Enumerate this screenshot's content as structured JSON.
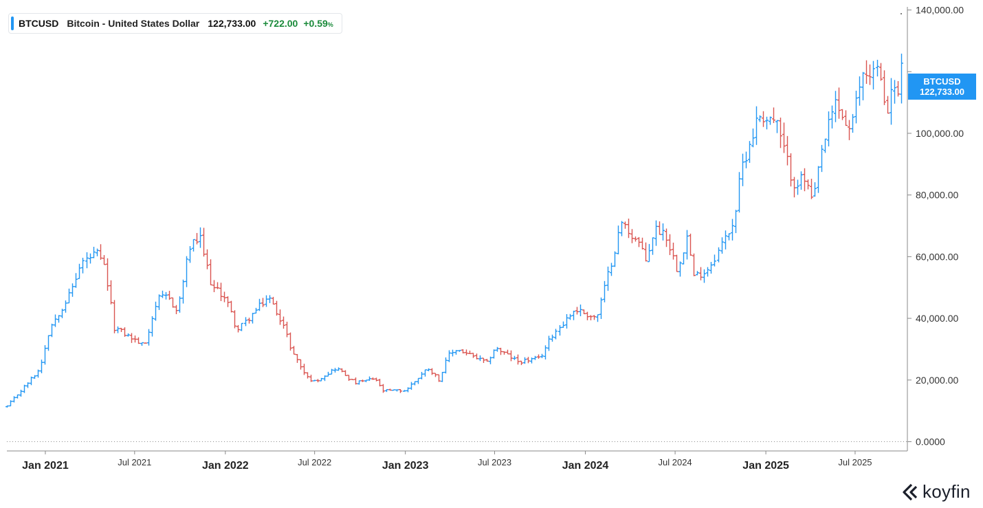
{
  "legend": {
    "symbol": "BTCUSD",
    "name": "Bitcoin - United States Dollar",
    "price": "122,733.00",
    "change": "+722.00",
    "change_pct": "+0.59",
    "pct_sign": "%"
  },
  "price_tag": {
    "symbol": "BTCUSD",
    "price": "122,733.00"
  },
  "brand": {
    "name": "koyfin"
  },
  "colors": {
    "up": "#2196f3",
    "down": "#d9534f",
    "grid": "#e6e6e6",
    "axis": "#999999"
  },
  "chart_data": {
    "type": "ohlc",
    "interval": "weekly",
    "title": "",
    "xlabel": "",
    "ylabel": "",
    "ylim": [
      -3000,
      141000
    ],
    "y_ticks": [
      {
        "value": 0,
        "label": "0.0000"
      },
      {
        "value": 20000,
        "label": "20,000.00"
      },
      {
        "value": 40000,
        "label": "40,000.00"
      },
      {
        "value": 60000,
        "label": "60,000.00"
      },
      {
        "value": 80000,
        "label": "80,000.00"
      },
      {
        "value": 100000,
        "label": "100,000.00"
      },
      {
        "value": 120000,
        "label": ""
      },
      {
        "value": 140000,
        "label": "140,000.00"
      }
    ],
    "x_ticks": [
      {
        "date": "2021-01-01",
        "label": "Jan 2021",
        "major": true
      },
      {
        "date": "2021-07-01",
        "label": "Jul 2021",
        "major": false
      },
      {
        "date": "2022-01-01",
        "label": "Jan 2022",
        "major": true
      },
      {
        "date": "2022-07-01",
        "label": "Jul 2022",
        "major": false
      },
      {
        "date": "2023-01-01",
        "label": "Jan 2023",
        "major": true
      },
      {
        "date": "2023-07-01",
        "label": "Jul 2023",
        "major": false
      },
      {
        "date": "2024-01-01",
        "label": "Jan 2024",
        "major": true
      },
      {
        "date": "2024-07-01",
        "label": "Jul 2024",
        "major": false
      },
      {
        "date": "2025-01-01",
        "label": "Jan 2025",
        "major": true
      },
      {
        "date": "2025-07-01",
        "label": "Jul 2025",
        "major": false
      }
    ],
    "x_range": [
      "2020-10-15",
      "2025-10-15"
    ],
    "zero_line": "dotted",
    "anchors": [
      [
        "2020-10-15",
        11500
      ],
      [
        "2020-11-20",
        18000
      ],
      [
        "2020-12-20",
        23500
      ],
      [
        "2021-01-10",
        37000
      ],
      [
        "2021-02-20",
        48000
      ],
      [
        "2021-03-15",
        58000
      ],
      [
        "2021-04-14",
        61000
      ],
      [
        "2021-05-01",
        56000
      ],
      [
        "2021-05-20",
        37000
      ],
      [
        "2021-06-20",
        34000
      ],
      [
        "2021-07-20",
        31000
      ],
      [
        "2021-08-15",
        46000
      ],
      [
        "2021-09-07",
        47000
      ],
      [
        "2021-09-25",
        42000
      ],
      [
        "2021-10-20",
        63000
      ],
      [
        "2021-11-10",
        66000
      ],
      [
        "2021-12-05",
        50000
      ],
      [
        "2022-01-01",
        47000
      ],
      [
        "2022-01-25",
        36000
      ],
      [
        "2022-03-28",
        47000
      ],
      [
        "2022-04-25",
        39000
      ],
      [
        "2022-05-15",
        29500
      ],
      [
        "2022-06-14",
        21000
      ],
      [
        "2022-06-30",
        19500
      ],
      [
        "2022-08-14",
        24000
      ],
      [
        "2022-09-20",
        19000
      ],
      [
        "2022-11-01",
        20500
      ],
      [
        "2022-11-15",
        16500
      ],
      [
        "2022-12-31",
        16600
      ],
      [
        "2023-02-15",
        24000
      ],
      [
        "2023-03-10",
        20000
      ],
      [
        "2023-03-28",
        28000
      ],
      [
        "2023-04-15",
        30000
      ],
      [
        "2023-06-15",
        25500
      ],
      [
        "2023-07-01",
        30500
      ],
      [
        "2023-08-17",
        26000
      ],
      [
        "2023-10-01",
        27000
      ],
      [
        "2023-10-25",
        34500
      ],
      [
        "2023-12-10",
        43000
      ],
      [
        "2024-01-23",
        40000
      ],
      [
        "2024-02-28",
        62000
      ],
      [
        "2024-03-14",
        71000
      ],
      [
        "2024-04-20",
        64000
      ],
      [
        "2024-05-01",
        58000
      ],
      [
        "2024-05-20",
        69000
      ],
      [
        "2024-06-10",
        68000
      ],
      [
        "2024-07-05",
        56000
      ],
      [
        "2024-07-28",
        68000
      ],
      [
        "2024-08-05",
        53000
      ],
      [
        "2024-09-05",
        56000
      ],
      [
        "2024-09-30",
        63000
      ],
      [
        "2024-10-28",
        72000
      ],
      [
        "2024-11-12",
        89000
      ],
      [
        "2024-12-17",
        106000
      ],
      [
        "2025-01-20",
        104000
      ],
      [
        "2025-02-25",
        84000
      ],
      [
        "2025-03-20",
        85000
      ],
      [
        "2025-04-07",
        77000
      ],
      [
        "2025-04-22",
        93000
      ],
      [
        "2025-05-22",
        110000
      ],
      [
        "2025-06-22",
        100000
      ],
      [
        "2025-07-14",
        119000
      ],
      [
        "2025-08-14",
        121000
      ],
      [
        "2025-09-01",
        108000
      ],
      [
        "2025-09-20",
        116000
      ],
      [
        "2025-09-28",
        110000
      ],
      [
        "2025-10-06",
        122733
      ]
    ]
  }
}
